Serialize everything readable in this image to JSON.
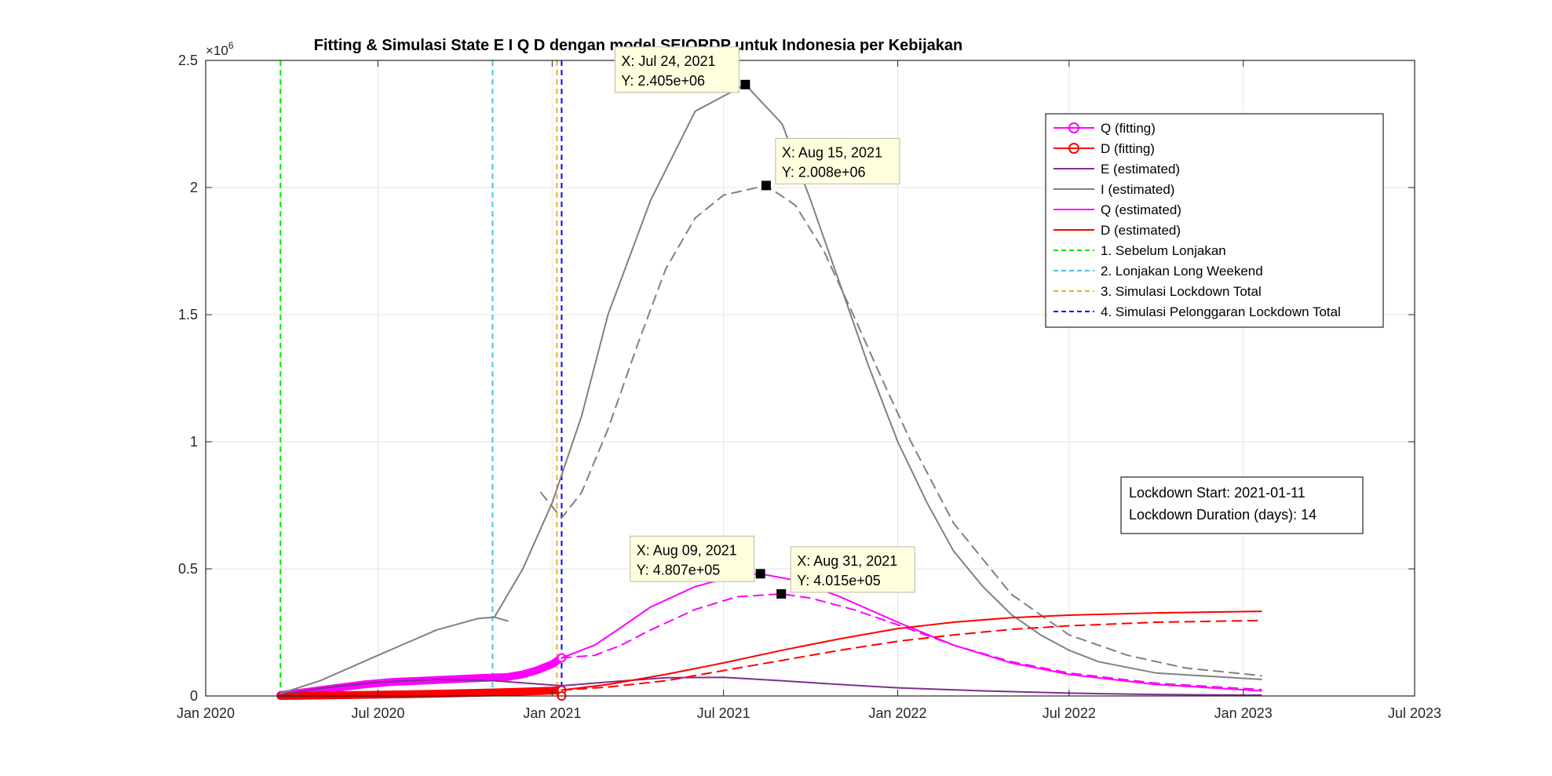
{
  "chart_data": {
    "type": "line",
    "title": "Fitting & Simulasi State  E I Q D dengan model SEIQRDP untuk Indonesia per Kebijakan",
    "xlabel": "",
    "ylabel": "",
    "y_exponent_label": "×10",
    "y_exponent_power": "6",
    "xlim": [
      "2020-01-01",
      "2023-07-01"
    ],
    "ylim": [
      0,
      2.5
    ],
    "grid": true,
    "legend_position": "top-right",
    "x_ticks": [
      {
        "date": "2020-01-01",
        "label": "Jan 2020"
      },
      {
        "date": "2020-07-01",
        "label": "Jul 2020"
      },
      {
        "date": "2021-01-01",
        "label": "Jan 2021"
      },
      {
        "date": "2021-07-01",
        "label": "Jul 2021"
      },
      {
        "date": "2022-01-01",
        "label": "Jan 2022"
      },
      {
        "date": "2022-07-01",
        "label": "Jul 2022"
      },
      {
        "date": "2023-01-01",
        "label": "Jan 2023"
      },
      {
        "date": "2023-07-01",
        "label": "Jul 2023"
      }
    ],
    "y_ticks": [
      {
        "value": 0,
        "label": "0"
      },
      {
        "value": 0.5,
        "label": "0.5"
      },
      {
        "value": 1,
        "label": "1"
      },
      {
        "value": 1.5,
        "label": "1.5"
      },
      {
        "value": 2,
        "label": "2"
      },
      {
        "value": 2.5,
        "label": "2.5"
      }
    ],
    "series": [
      {
        "name": "Q (fitting)",
        "color": "#ff00ff",
        "style": "solid-circles",
        "width": 10,
        "points": [
          [
            "2020-03-20",
            0.004
          ],
          [
            "2020-04-15",
            0.015
          ],
          [
            "2020-05-15",
            0.03
          ],
          [
            "2020-06-15",
            0.045
          ],
          [
            "2020-07-15",
            0.055
          ],
          [
            "2020-08-15",
            0.06
          ],
          [
            "2020-09-15",
            0.065
          ],
          [
            "2020-10-15",
            0.07
          ],
          [
            "2020-11-15",
            0.075
          ],
          [
            "2020-12-01",
            0.085
          ],
          [
            "2020-12-15",
            0.1
          ],
          [
            "2021-01-01",
            0.125
          ],
          [
            "2021-01-11",
            0.15
          ]
        ]
      },
      {
        "name": "D (fitting)",
        "color": "#ff0000",
        "style": "solid-circles",
        "width": 10,
        "points": [
          [
            "2020-03-20",
            0.0
          ],
          [
            "2020-05-01",
            0.002
          ],
          [
            "2020-07-01",
            0.005
          ],
          [
            "2020-09-01",
            0.009
          ],
          [
            "2020-11-01",
            0.014
          ],
          [
            "2021-01-01",
            0.021
          ],
          [
            "2021-01-11",
            0.023
          ]
        ]
      },
      {
        "name": "E (estimated)",
        "color": "#7e2f8e",
        "style": "solid",
        "width": 2,
        "points": [
          [
            "2020-03-20",
            0.005
          ],
          [
            "2020-05-01",
            0.03
          ],
          [
            "2020-07-01",
            0.055
          ],
          [
            "2020-09-01",
            0.065
          ],
          [
            "2020-11-01",
            0.06
          ],
          [
            "2021-01-11",
            0.04
          ],
          [
            "2021-03-01",
            0.055
          ],
          [
            "2021-05-01",
            0.072
          ],
          [
            "2021-07-01",
            0.073
          ],
          [
            "2021-09-01",
            0.06
          ],
          [
            "2021-11-01",
            0.045
          ],
          [
            "2022-01-01",
            0.032
          ],
          [
            "2022-04-01",
            0.02
          ],
          [
            "2022-07-01",
            0.011
          ],
          [
            "2022-10-01",
            0.006
          ],
          [
            "2023-01-20",
            0.003
          ]
        ]
      },
      {
        "name": "I (estimated)",
        "color": "#808080",
        "style": "solid",
        "width": 2,
        "points": [
          [
            "2020-03-20",
            0.01
          ],
          [
            "2020-05-01",
            0.06
          ],
          [
            "2020-07-01",
            0.16
          ],
          [
            "2020-09-01",
            0.26
          ],
          [
            "2020-10-15",
            0.305
          ],
          [
            "2020-11-01",
            0.31
          ],
          [
            "2020-11-15",
            0.295
          ]
        ]
      },
      {
        "name": "",
        "color": "#808080",
        "style": "solid",
        "width": 2,
        "points": [
          [
            "2020-11-01",
            0.31
          ],
          [
            "2020-12-01",
            0.5
          ],
          [
            "2021-01-01",
            0.76
          ],
          [
            "2021-02-01",
            1.1
          ],
          [
            "2021-03-01",
            1.5
          ],
          [
            "2021-04-15",
            1.95
          ],
          [
            "2021-06-01",
            2.3
          ],
          [
            "2021-07-24",
            2.405
          ],
          [
            "2021-09-01",
            2.25
          ],
          [
            "2021-10-01",
            1.95
          ],
          [
            "2021-11-01",
            1.62
          ],
          [
            "2021-12-01",
            1.3
          ],
          [
            "2022-01-01",
            1.0
          ],
          [
            "2022-02-01",
            0.76
          ],
          [
            "2022-03-01",
            0.57
          ],
          [
            "2022-04-01",
            0.43
          ],
          [
            "2022-05-01",
            0.32
          ],
          [
            "2022-06-01",
            0.24
          ],
          [
            "2022-07-01",
            0.18
          ],
          [
            "2022-08-01",
            0.135
          ],
          [
            "2022-10-01",
            0.09
          ],
          [
            "2023-01-20",
            0.065
          ]
        ]
      },
      {
        "name": "",
        "color": "#808080",
        "style": "dashed",
        "width": 2,
        "points": [
          [
            "2020-12-20",
            0.8
          ],
          [
            "2021-01-11",
            0.7
          ],
          [
            "2021-02-01",
            0.8
          ],
          [
            "2021-03-01",
            1.05
          ],
          [
            "2021-04-01",
            1.38
          ],
          [
            "2021-05-01",
            1.68
          ],
          [
            "2021-06-01",
            1.88
          ],
          [
            "2021-07-01",
            1.97
          ],
          [
            "2021-08-15",
            2.008
          ],
          [
            "2021-09-15",
            1.93
          ],
          [
            "2021-10-15",
            1.75
          ],
          [
            "2021-11-15",
            1.5
          ],
          [
            "2021-12-15",
            1.25
          ],
          [
            "2022-01-15",
            1.0
          ],
          [
            "2022-03-01",
            0.68
          ],
          [
            "2022-05-01",
            0.4
          ],
          [
            "2022-07-01",
            0.24
          ],
          [
            "2022-09-01",
            0.16
          ],
          [
            "2022-11-01",
            0.11
          ],
          [
            "2023-01-20",
            0.08
          ]
        ]
      },
      {
        "name": "Q (estimated)",
        "color": "#ff00ff",
        "style": "solid",
        "width": 2,
        "points": [
          [
            "2021-01-11",
            0.15
          ],
          [
            "2021-02-15",
            0.2
          ],
          [
            "2021-03-15",
            0.27
          ],
          [
            "2021-04-15",
            0.35
          ],
          [
            "2021-06-01",
            0.43
          ],
          [
            "2021-07-15",
            0.475
          ],
          [
            "2021-08-09",
            0.4807
          ],
          [
            "2021-09-15",
            0.455
          ],
          [
            "2021-11-01",
            0.39
          ],
          [
            "2022-01-01",
            0.29
          ],
          [
            "2022-03-01",
            0.2
          ],
          [
            "2022-05-01",
            0.13
          ],
          [
            "2022-07-01",
            0.085
          ],
          [
            "2022-10-01",
            0.045
          ],
          [
            "2023-01-20",
            0.02
          ]
        ]
      },
      {
        "name": "",
        "color": "#ff00ff",
        "style": "dashed",
        "width": 2,
        "points": [
          [
            "2021-01-11",
            0.15
          ],
          [
            "2021-02-15",
            0.16
          ],
          [
            "2021-03-15",
            0.2
          ],
          [
            "2021-04-15",
            0.26
          ],
          [
            "2021-06-01",
            0.34
          ],
          [
            "2021-07-15",
            0.39
          ],
          [
            "2021-08-31",
            0.4015
          ],
          [
            "2021-10-01",
            0.385
          ],
          [
            "2021-11-15",
            0.34
          ],
          [
            "2022-01-01",
            0.28
          ],
          [
            "2022-03-01",
            0.2
          ],
          [
            "2022-05-01",
            0.135
          ],
          [
            "2022-07-01",
            0.09
          ],
          [
            "2022-10-01",
            0.05
          ],
          [
            "2023-01-20",
            0.025
          ]
        ]
      },
      {
        "name": "D (estimated)",
        "color": "#ff0000",
        "style": "solid",
        "width": 2,
        "points": [
          [
            "2021-01-11",
            0.023
          ],
          [
            "2021-03-01",
            0.045
          ],
          [
            "2021-05-01",
            0.085
          ],
          [
            "2021-07-01",
            0.13
          ],
          [
            "2021-09-01",
            0.18
          ],
          [
            "2021-11-01",
            0.225
          ],
          [
            "2022-01-01",
            0.265
          ],
          [
            "2022-03-01",
            0.29
          ],
          [
            "2022-05-01",
            0.308
          ],
          [
            "2022-07-01",
            0.318
          ],
          [
            "2022-10-01",
            0.327
          ],
          [
            "2023-01-20",
            0.333
          ]
        ]
      },
      {
        "name": "",
        "color": "#ff0000",
        "style": "dashed",
        "width": 2,
        "points": [
          [
            "2021-01-11",
            0.023
          ],
          [
            "2021-03-01",
            0.035
          ],
          [
            "2021-05-01",
            0.06
          ],
          [
            "2021-07-01",
            0.1
          ],
          [
            "2021-09-01",
            0.14
          ],
          [
            "2021-11-01",
            0.18
          ],
          [
            "2022-01-01",
            0.215
          ],
          [
            "2022-03-01",
            0.24
          ],
          [
            "2022-05-01",
            0.262
          ],
          [
            "2022-07-01",
            0.276
          ],
          [
            "2022-10-01",
            0.29
          ],
          [
            "2023-01-20",
            0.297
          ]
        ]
      }
    ],
    "vertical_lines": [
      {
        "name": "1. Sebelum Lonjakan",
        "date": "2020-03-20",
        "color": "#00ee00"
      },
      {
        "name": "2. Lonjakan Long Weekend",
        "date": "2020-10-30",
        "color": "#4dbeee"
      },
      {
        "name": "3. Simulasi Lockdown Total",
        "date": "2021-01-06",
        "color": "#edb120"
      },
      {
        "name": "4. Simulasi Pelonggaran Lockdown Total",
        "date": "2021-01-11",
        "color": "#0000ff"
      }
    ],
    "datatips": [
      {
        "date": "2021-07-24",
        "value": 2.405,
        "line1": "X: Jul 24, 2021",
        "line2": "Y: 2.405e+06",
        "anchor": "upper-left"
      },
      {
        "date": "2021-08-15",
        "value": 2.008,
        "line1": "X: Aug 15, 2021",
        "line2": "Y: 2.008e+06",
        "anchor": "upper-right"
      },
      {
        "date": "2021-08-09",
        "value": 0.4807,
        "line1": "X: Aug 09, 2021",
        "line2": "Y: 4.807e+05",
        "anchor": "upper-left"
      },
      {
        "date": "2021-08-31",
        "value": 0.4015,
        "line1": "X: Aug 31, 2021",
        "line2": "Y: 4.015e+05",
        "anchor": "upper-right"
      }
    ],
    "annotation": {
      "line1": "Lockdown Start: 2021-01-11",
      "line2": "Lockdown Duration (days): 14"
    },
    "legend": [
      {
        "label": "Q (fitting)",
        "color": "#ff00ff",
        "marker": "circle",
        "dash": false
      },
      {
        "label": "D (fitting)",
        "color": "#ff0000",
        "marker": "circle",
        "dash": false
      },
      {
        "label": "E (estimated)",
        "color": "#7e2f8e",
        "marker": "",
        "dash": false
      },
      {
        "label": "I (estimated)",
        "color": "#808080",
        "marker": "",
        "dash": false
      },
      {
        "label": "Q (estimated)",
        "color": "#ff00ff",
        "marker": "",
        "dash": false
      },
      {
        "label": "D (estimated)",
        "color": "#ff0000",
        "marker": "",
        "dash": false
      },
      {
        "label": "1. Sebelum Lonjakan",
        "color": "#00ee00",
        "marker": "",
        "dash": true
      },
      {
        "label": "2. Lonjakan Long Weekend",
        "color": "#4dbeee",
        "marker": "",
        "dash": true
      },
      {
        "label": "3. Simulasi Lockdown Total",
        "color": "#edb120",
        "marker": "",
        "dash": true
      },
      {
        "label": "4. Simulasi Pelonggaran Lockdown Total",
        "color": "#0000ff",
        "marker": "",
        "dash": true
      }
    ]
  }
}
